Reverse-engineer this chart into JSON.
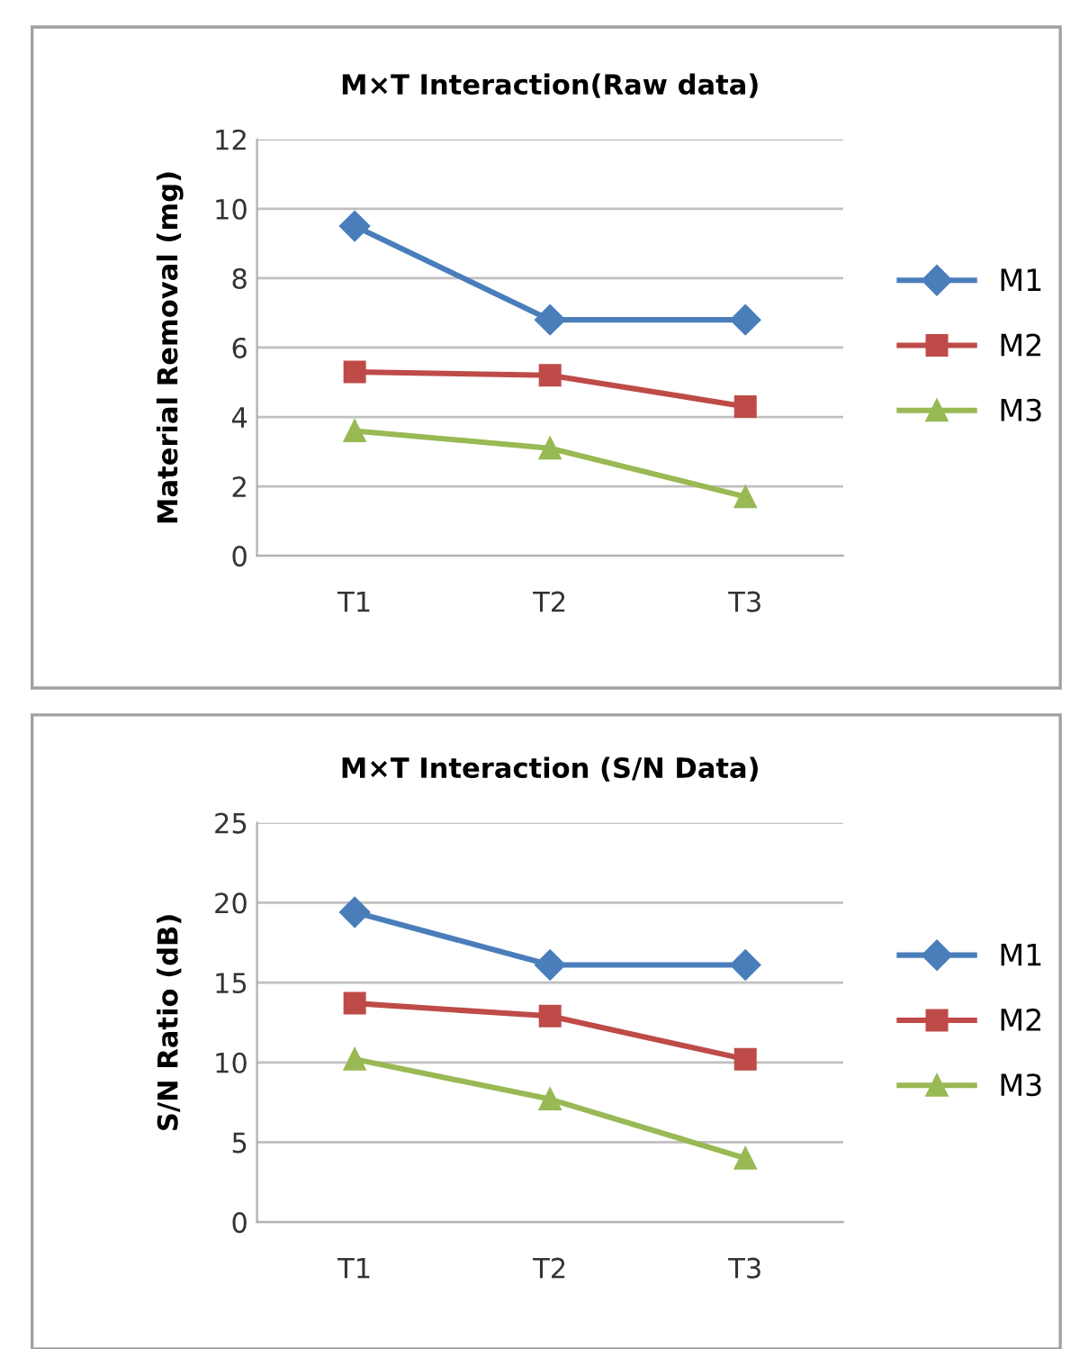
{
  "chart_data": [
    {
      "type": "line",
      "title": "M×T Interaction(Raw data)",
      "ylabel": "Material Removal (mg)",
      "categories": [
        "T1",
        "T2",
        "T3"
      ],
      "ylim": [
        0,
        12
      ],
      "yticks": [
        0,
        2,
        4,
        6,
        8,
        10,
        12
      ],
      "grid": "y",
      "legend": "right",
      "series": [
        {
          "name": "M1",
          "color": "#4a7ebb",
          "marker": "diamond",
          "values": [
            9.5,
            6.8,
            6.8
          ]
        },
        {
          "name": "M2",
          "color": "#be4b48",
          "marker": "square",
          "values": [
            5.3,
            5.2,
            4.3
          ]
        },
        {
          "name": "M3",
          "color": "#98b954",
          "marker": "triangle",
          "values": [
            3.6,
            3.1,
            1.7
          ]
        }
      ]
    },
    {
      "type": "line",
      "title": "M×T Interaction (S/N Data)",
      "ylabel": "S/N Ratio (dB)",
      "categories": [
        "T1",
        "T2",
        "T3"
      ],
      "ylim": [
        0,
        25
      ],
      "yticks": [
        0,
        5,
        10,
        15,
        20,
        25
      ],
      "grid": "y",
      "legend": "right",
      "series": [
        {
          "name": "M1",
          "color": "#4a7ebb",
          "marker": "diamond",
          "values": [
            19.4,
            16.1,
            16.1
          ]
        },
        {
          "name": "M2",
          "color": "#be4b48",
          "marker": "square",
          "values": [
            13.7,
            12.9,
            10.2
          ]
        },
        {
          "name": "M3",
          "color": "#98b954",
          "marker": "triangle",
          "values": [
            10.2,
            7.7,
            4.0
          ]
        }
      ]
    }
  ]
}
